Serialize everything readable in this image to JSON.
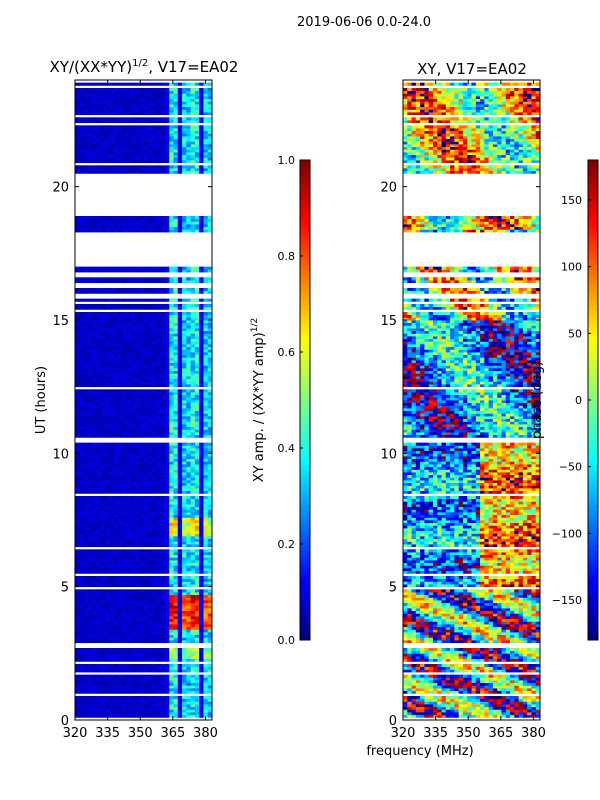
{
  "chart_data": {
    "suptitle": "2019-06-06 0.0-24.0",
    "xlabel_shared": "frequency (MHz)",
    "colors": {
      "jet": [
        "#00007f",
        "#0000ff",
        "#007fff",
        "#00ffff",
        "#7fff7f",
        "#ffff00",
        "#ff7f00",
        "#ff0000",
        "#7f0000"
      ],
      "flag": "#ffffff"
    },
    "panels": [
      {
        "type": "heatmap",
        "title_html": "XY/(XX*YY)",
        "title_sup": "1/2",
        "title_rest": ", V17=EA02",
        "ylabel": "UT (hours)",
        "xlim": [
          320,
          383
        ],
        "ylim": [
          0,
          24
        ],
        "xticks": [
          320,
          335,
          350,
          365,
          380
        ],
        "yticks": [
          0,
          5,
          10,
          15,
          20
        ],
        "kind": "amp"
      },
      {
        "type": "heatmap",
        "title": "XY, V17=EA02",
        "xlim": [
          320,
          383
        ],
        "ylim": [
          0,
          24
        ],
        "xticks": [
          320,
          335,
          350,
          365,
          380
        ],
        "yticks": [
          0,
          5,
          10,
          15,
          20
        ],
        "kind": "phase"
      }
    ],
    "colorbars": [
      {
        "label_main": "XY amp. / (XX*YY amp)",
        "label_sup": "1/2",
        "vmin": 0.0,
        "vmax": 1.0,
        "ticks": [
          "0.0",
          "0.2",
          "0.4",
          "0.6",
          "0.8",
          "1.0"
        ]
      },
      {
        "label_main": "phase (deg)",
        "vmin": -180,
        "vmax": 180,
        "ticks": [
          "−150",
          "−100",
          "−50",
          "0",
          "50",
          "100",
          "150"
        ]
      }
    ],
    "flagged_ut_ranges": [
      [
        0.05,
        0.15
      ],
      [
        0.5,
        0.55
      ],
      [
        0.95,
        1.0
      ],
      [
        1.3,
        1.35
      ],
      [
        1.5,
        1.55
      ],
      [
        1.7,
        1.8
      ],
      [
        2.1,
        2.2
      ],
      [
        2.7,
        2.95
      ],
      [
        3.3,
        3.35
      ],
      [
        3.7,
        3.75
      ],
      [
        4.9,
        5.0
      ],
      [
        5.2,
        5.25
      ],
      [
        5.45,
        5.5
      ],
      [
        5.8,
        5.85
      ],
      [
        6.0,
        6.05
      ],
      [
        6.4,
        6.5
      ],
      [
        6.8,
        6.85
      ],
      [
        7.6,
        7.65
      ],
      [
        8.0,
        8.05
      ],
      [
        8.4,
        8.5
      ],
      [
        9.0,
        9.05
      ],
      [
        9.5,
        9.55
      ],
      [
        10.2,
        10.25
      ],
      [
        10.45,
        10.6
      ],
      [
        11.0,
        11.05
      ],
      [
        11.5,
        11.55
      ],
      [
        12.0,
        12.05
      ],
      [
        12.4,
        12.5
      ],
      [
        12.9,
        12.95
      ],
      [
        13.4,
        13.45
      ],
      [
        14.0,
        14.05
      ],
      [
        14.6,
        14.65
      ],
      [
        15.3,
        15.4
      ],
      [
        15.6,
        15.7
      ],
      [
        15.8,
        16.0
      ],
      [
        16.2,
        16.45
      ],
      [
        16.6,
        16.85
      ],
      [
        17.05,
        18.35
      ],
      [
        18.6,
        18.65
      ],
      [
        18.9,
        20.55
      ],
      [
        20.8,
        20.9
      ],
      [
        21.0,
        21.05
      ],
      [
        22.35,
        22.4
      ],
      [
        22.6,
        22.7
      ],
      [
        22.9,
        22.95
      ],
      [
        23.5,
        23.55
      ],
      [
        23.75,
        23.8
      ],
      [
        23.95,
        24.0
      ]
    ]
  }
}
